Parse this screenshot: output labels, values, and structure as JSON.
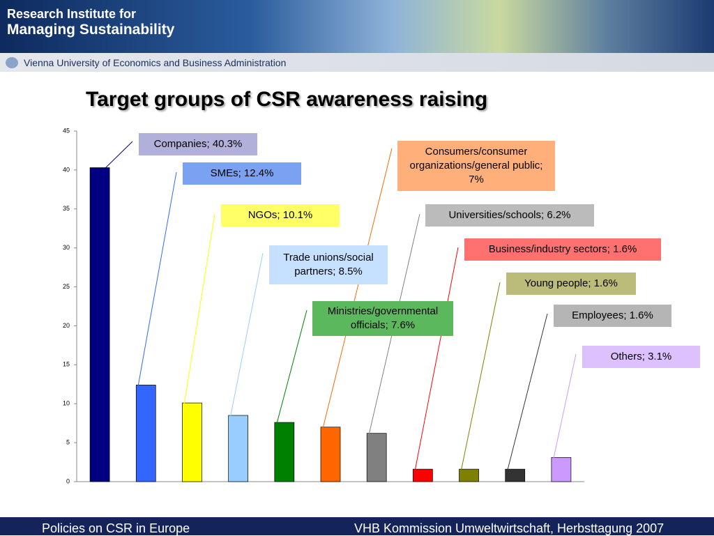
{
  "header": {
    "institute_line1": "Research Institute for",
    "institute_line2": "Managing Sustainability",
    "university": "Vienna University of Economics and Business Administration"
  },
  "footer": {
    "left": "Policies on CSR in Europe",
    "right": "VHB Kommission Umweltwirtschaft, Herbsttagung 2007"
  },
  "chart_data": {
    "type": "bar",
    "title": "Target groups of CSR awareness raising",
    "values": [
      40.3,
      12.4,
      10.1,
      8.5,
      7.6,
      7,
      6.2,
      1.6,
      1.6,
      1.6,
      3.1
    ],
    "value_labels": [
      "Companies; 40.3%",
      "SMEs; 12.4%",
      "NGOs; 10.1%",
      "Trade unions/social partners; 8.5%",
      "Ministries/governmental officials; 7.6%",
      "Consumers/consumer organizations/general public; 7%",
      "Universities/schools; 6.2%",
      "Business/industry sectors; 1.6%",
      "Young people; 1.6%",
      "Employees; 1.6%",
      "Others; 3.1%"
    ],
    "colors": [
      "#000080",
      "#3366ff",
      "#ffff00",
      "#99ccff",
      "#008000",
      "#ff6600",
      "#808080",
      "#ff0000",
      "#808000",
      "#333333",
      "#cc99ff"
    ],
    "label_colors": [
      "#b0b0da",
      "#7aa2f0",
      "#ffff66",
      "#c6e0ff",
      "#5cb85c",
      "#ffb07a",
      "#bbbbbb",
      "#ff7070",
      "#bcbc7a",
      "#b5b5b5",
      "#ddc1ff"
    ],
    "ylim": [
      0,
      45
    ],
    "yticks": [
      0,
      5,
      10,
      15,
      20,
      25,
      30,
      35,
      40,
      45
    ],
    "grid": false
  }
}
